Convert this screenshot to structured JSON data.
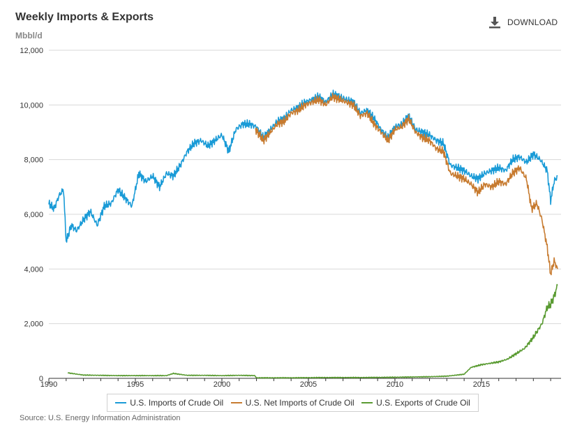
{
  "header": {
    "title": "Weekly Imports & Exports",
    "unit": "Mbbl/d",
    "download_label": "DOWNLOAD",
    "download_icon": "download-icon"
  },
  "source": "Source: U.S. Energy Information Administration",
  "colors": {
    "imports": "#1a9bd7",
    "net_imports": "#c77b30",
    "exports": "#5a9b32",
    "grid": "#d8d8d8",
    "axis": "#333333"
  },
  "chart_data": {
    "type": "line",
    "title": "Weekly Imports & Exports",
    "ylabel": "Mbbl/d",
    "xlim": [
      1990,
      2019.6
    ],
    "ylim": [
      0,
      12000
    ],
    "x_ticks": [
      "1990",
      "1995",
      "2000",
      "2005",
      "2010",
      "2015"
    ],
    "y_ticks": [
      "0",
      "2,000",
      "4,000",
      "6,000",
      "8,000",
      "10,000",
      "12,000"
    ],
    "grid": true,
    "legend_position": "bottom",
    "series": [
      {
        "key": "imports",
        "name": "U.S. Imports of Crude Oil",
        "x": [
          1990.0,
          1990.3,
          1990.6,
          1990.85,
          1991.0,
          1991.3,
          1991.6,
          1992.0,
          1992.4,
          1992.8,
          1993.2,
          1993.6,
          1994.0,
          1994.4,
          1994.8,
          1995.2,
          1995.6,
          1996.0,
          1996.4,
          1996.8,
          1997.2,
          1997.6,
          1998.0,
          1998.4,
          1998.8,
          1999.2,
          1999.6,
          2000.0,
          2000.4,
          2000.8,
          2001.2,
          2001.6,
          2002.0,
          2002.4,
          2002.8,
          2003.2,
          2003.6,
          2004.0,
          2004.4,
          2004.8,
          2005.2,
          2005.6,
          2006.0,
          2006.4,
          2006.8,
          2007.2,
          2007.6,
          2008.0,
          2008.4,
          2008.8,
          2009.2,
          2009.6,
          2010.0,
          2010.4,
          2010.8,
          2011.2,
          2011.6,
          2012.0,
          2012.4,
          2012.8,
          2013.2,
          2013.6,
          2014.0,
          2014.4,
          2014.8,
          2015.2,
          2015.6,
          2016.0,
          2016.4,
          2016.8,
          2017.2,
          2017.6,
          2018.0,
          2018.4,
          2018.8,
          2019.0,
          2019.2,
          2019.4
        ],
        "values": [
          6400,
          6200,
          6700,
          6900,
          5000,
          5600,
          5400,
          5800,
          6100,
          5600,
          6300,
          6400,
          6900,
          6600,
          6300,
          7500,
          7200,
          7400,
          7000,
          7500,
          7400,
          7800,
          8300,
          8600,
          8700,
          8500,
          8700,
          8900,
          8300,
          9100,
          9300,
          9300,
          9200,
          8800,
          9100,
          9400,
          9500,
          9800,
          9900,
          10100,
          10200,
          10300,
          10100,
          10400,
          10300,
          10200,
          10100,
          9700,
          9800,
          9500,
          9100,
          8800,
          9200,
          9300,
          9600,
          9100,
          9000,
          8900,
          8700,
          8600,
          7800,
          7700,
          7600,
          7400,
          7300,
          7500,
          7600,
          7700,
          7600,
          8000,
          8100,
          7900,
          8200,
          8000,
          7600,
          6500,
          7200,
          7400
        ]
      },
      {
        "key": "net_imports",
        "name": "U.S. Net Imports of Crude Oil",
        "x": [
          2001.95,
          2002.4,
          2002.8,
          2003.2,
          2003.6,
          2004.0,
          2004.4,
          2004.8,
          2005.2,
          2005.6,
          2006.0,
          2006.4,
          2006.8,
          2007.2,
          2007.6,
          2008.0,
          2008.4,
          2008.8,
          2009.2,
          2009.6,
          2010.0,
          2010.4,
          2010.8,
          2011.2,
          2011.6,
          2012.0,
          2012.4,
          2012.8,
          2013.2,
          2013.6,
          2014.0,
          2014.4,
          2014.8,
          2015.2,
          2015.6,
          2016.0,
          2016.4,
          2016.8,
          2017.2,
          2017.6,
          2017.9,
          2018.2,
          2018.5,
          2018.8,
          2019.0,
          2019.2,
          2019.4
        ],
        "values": [
          9100,
          8700,
          9000,
          9300,
          9400,
          9700,
          9800,
          10000,
          10100,
          10200,
          10000,
          10300,
          10200,
          10100,
          10000,
          9600,
          9700,
          9300,
          9000,
          8700,
          9100,
          9200,
          9500,
          9000,
          8800,
          8700,
          8400,
          8300,
          7500,
          7400,
          7300,
          7100,
          6800,
          7100,
          7000,
          7200,
          7100,
          7500,
          7700,
          7300,
          6200,
          6400,
          5800,
          4800,
          3800,
          4300,
          4000
        ]
      },
      {
        "key": "exports",
        "name": "U.S. Exports of Crude Oil",
        "x": [
          1991.1,
          1992.0,
          1993.0,
          1994.0,
          1995.0,
          1996.0,
          1996.8,
          1997.2,
          1998.0,
          1999.0,
          2000.0,
          2001.0,
          2001.9,
          2002.0,
          2004.0,
          2006.0,
          2008.0,
          2010.0,
          2012.0,
          2013.0,
          2014.0,
          2014.4,
          2014.7,
          2015.0,
          2015.5,
          2016.0,
          2016.5,
          2017.0,
          2017.5,
          2018.0,
          2018.5,
          2018.8,
          2019.0,
          2019.2,
          2019.4
        ],
        "values": [
          200,
          120,
          110,
          100,
          100,
          100,
          100,
          180,
          110,
          110,
          100,
          110,
          100,
          20,
          20,
          30,
          30,
          40,
          60,
          80,
          150,
          400,
          450,
          500,
          550,
          600,
          700,
          900,
          1100,
          1500,
          2000,
          2600,
          2700,
          3000,
          3400
        ]
      }
    ]
  }
}
